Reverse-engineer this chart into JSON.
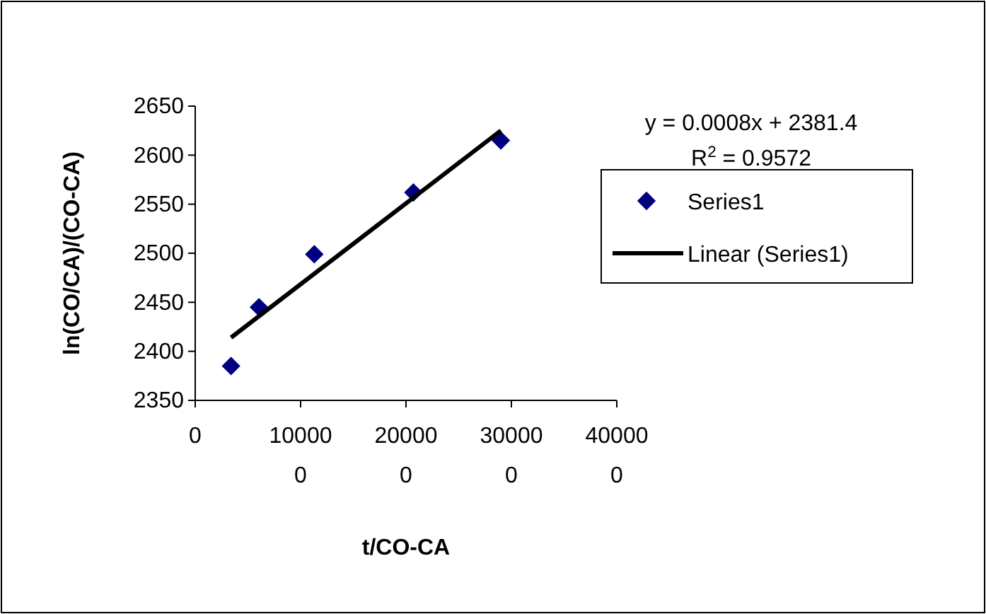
{
  "chart_data": {
    "type": "scatter",
    "xlabel": "t/CO-CA",
    "ylabel": "ln(CO/CA)/(CO-CA)",
    "series": [
      {
        "name": "Series1",
        "type": "scatter",
        "color": "#000080",
        "marker": "diamond",
        "x": [
          34000,
          60500,
          113000,
          207000,
          290000
        ],
        "values": [
          2385,
          2445,
          2499,
          2562,
          2615
        ]
      },
      {
        "name": "Linear (Series1)",
        "type": "line",
        "color": "#000000",
        "line_style": "solid",
        "x": [
          34000,
          290000
        ],
        "values": [
          2414,
          2625
        ]
      }
    ],
    "xlim": [
      0,
      400000
    ],
    "xticks": [
      0,
      {
        "value": 100000,
        "label": "100000"
      },
      {
        "value": 200000,
        "label": "200000"
      },
      {
        "value": 300000,
        "label": "300000"
      },
      {
        "value": 400000,
        "label": "400000"
      }
    ],
    "ylim": [
      2350,
      2650
    ],
    "yticks": [
      2350,
      2400,
      2450,
      2500,
      2550,
      2600,
      2650
    ],
    "annotations": [
      "y = 0.0008x + 2381.4",
      "R$^{2}$ = 0.9572"
    ],
    "legend": "right",
    "grid": false
  }
}
